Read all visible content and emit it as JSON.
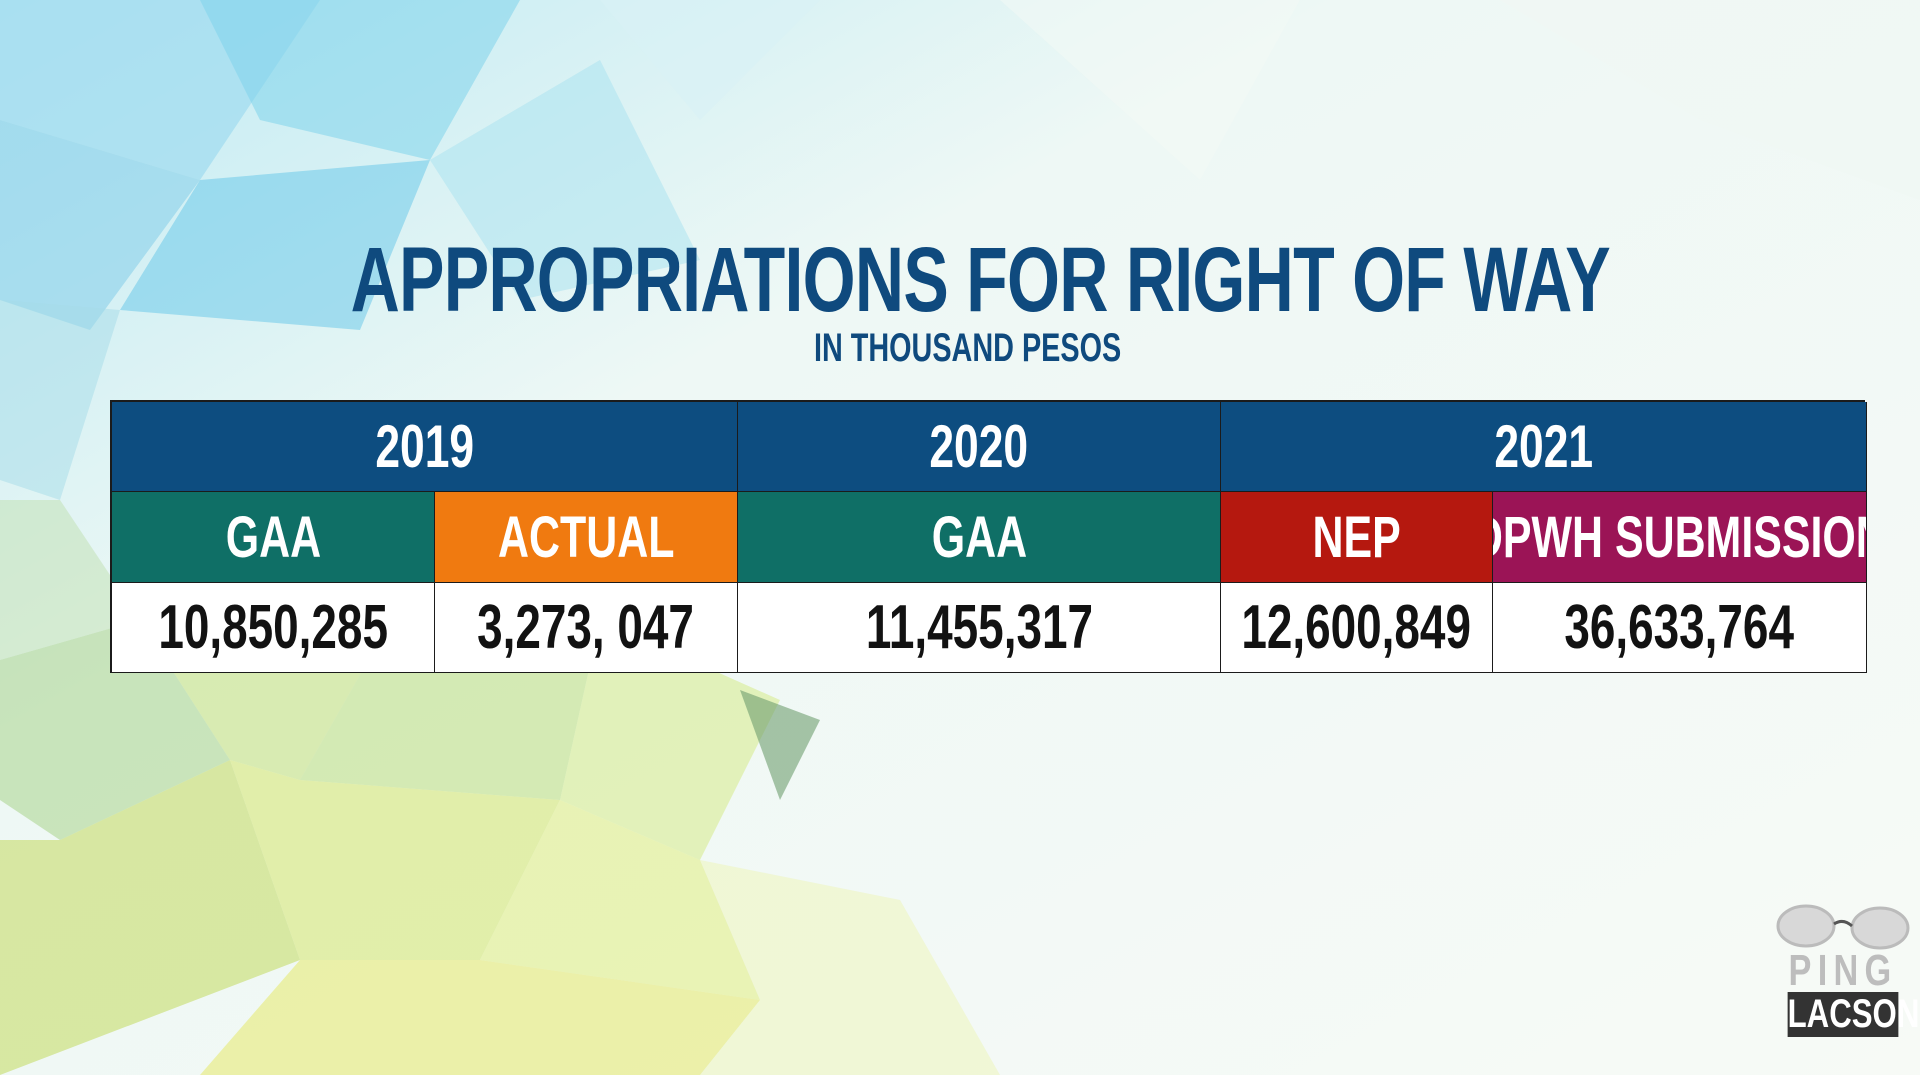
{
  "chart_data": {
    "type": "table",
    "title": "APPROPRIATIONS FOR RIGHT OF WAY",
    "subtitle": "IN THOUSAND PESOS",
    "years": [
      {
        "label": "2019",
        "color": "#0d4d80"
      },
      {
        "label": "2020",
        "color": "#0d4d80"
      },
      {
        "label": "2021",
        "color": "#0d4d80"
      }
    ],
    "columns": [
      {
        "label": "GAA",
        "value": "10,850,285",
        "color": "#0f6f66"
      },
      {
        "label": "ACTUAL",
        "value": "3,273, 047",
        "color": "#f07a10"
      },
      {
        "label": "GAA",
        "value": "11,455,317",
        "color": "#0f6f66"
      },
      {
        "label": "NEP",
        "value": "12,600,849",
        "color": "#b5180f"
      },
      {
        "label": "DPWH SUBMISSION",
        "value": "36,633,764",
        "color": "#9b1456"
      }
    ]
  },
  "logo": {
    "line1": "PING",
    "line2": "LACSON"
  }
}
